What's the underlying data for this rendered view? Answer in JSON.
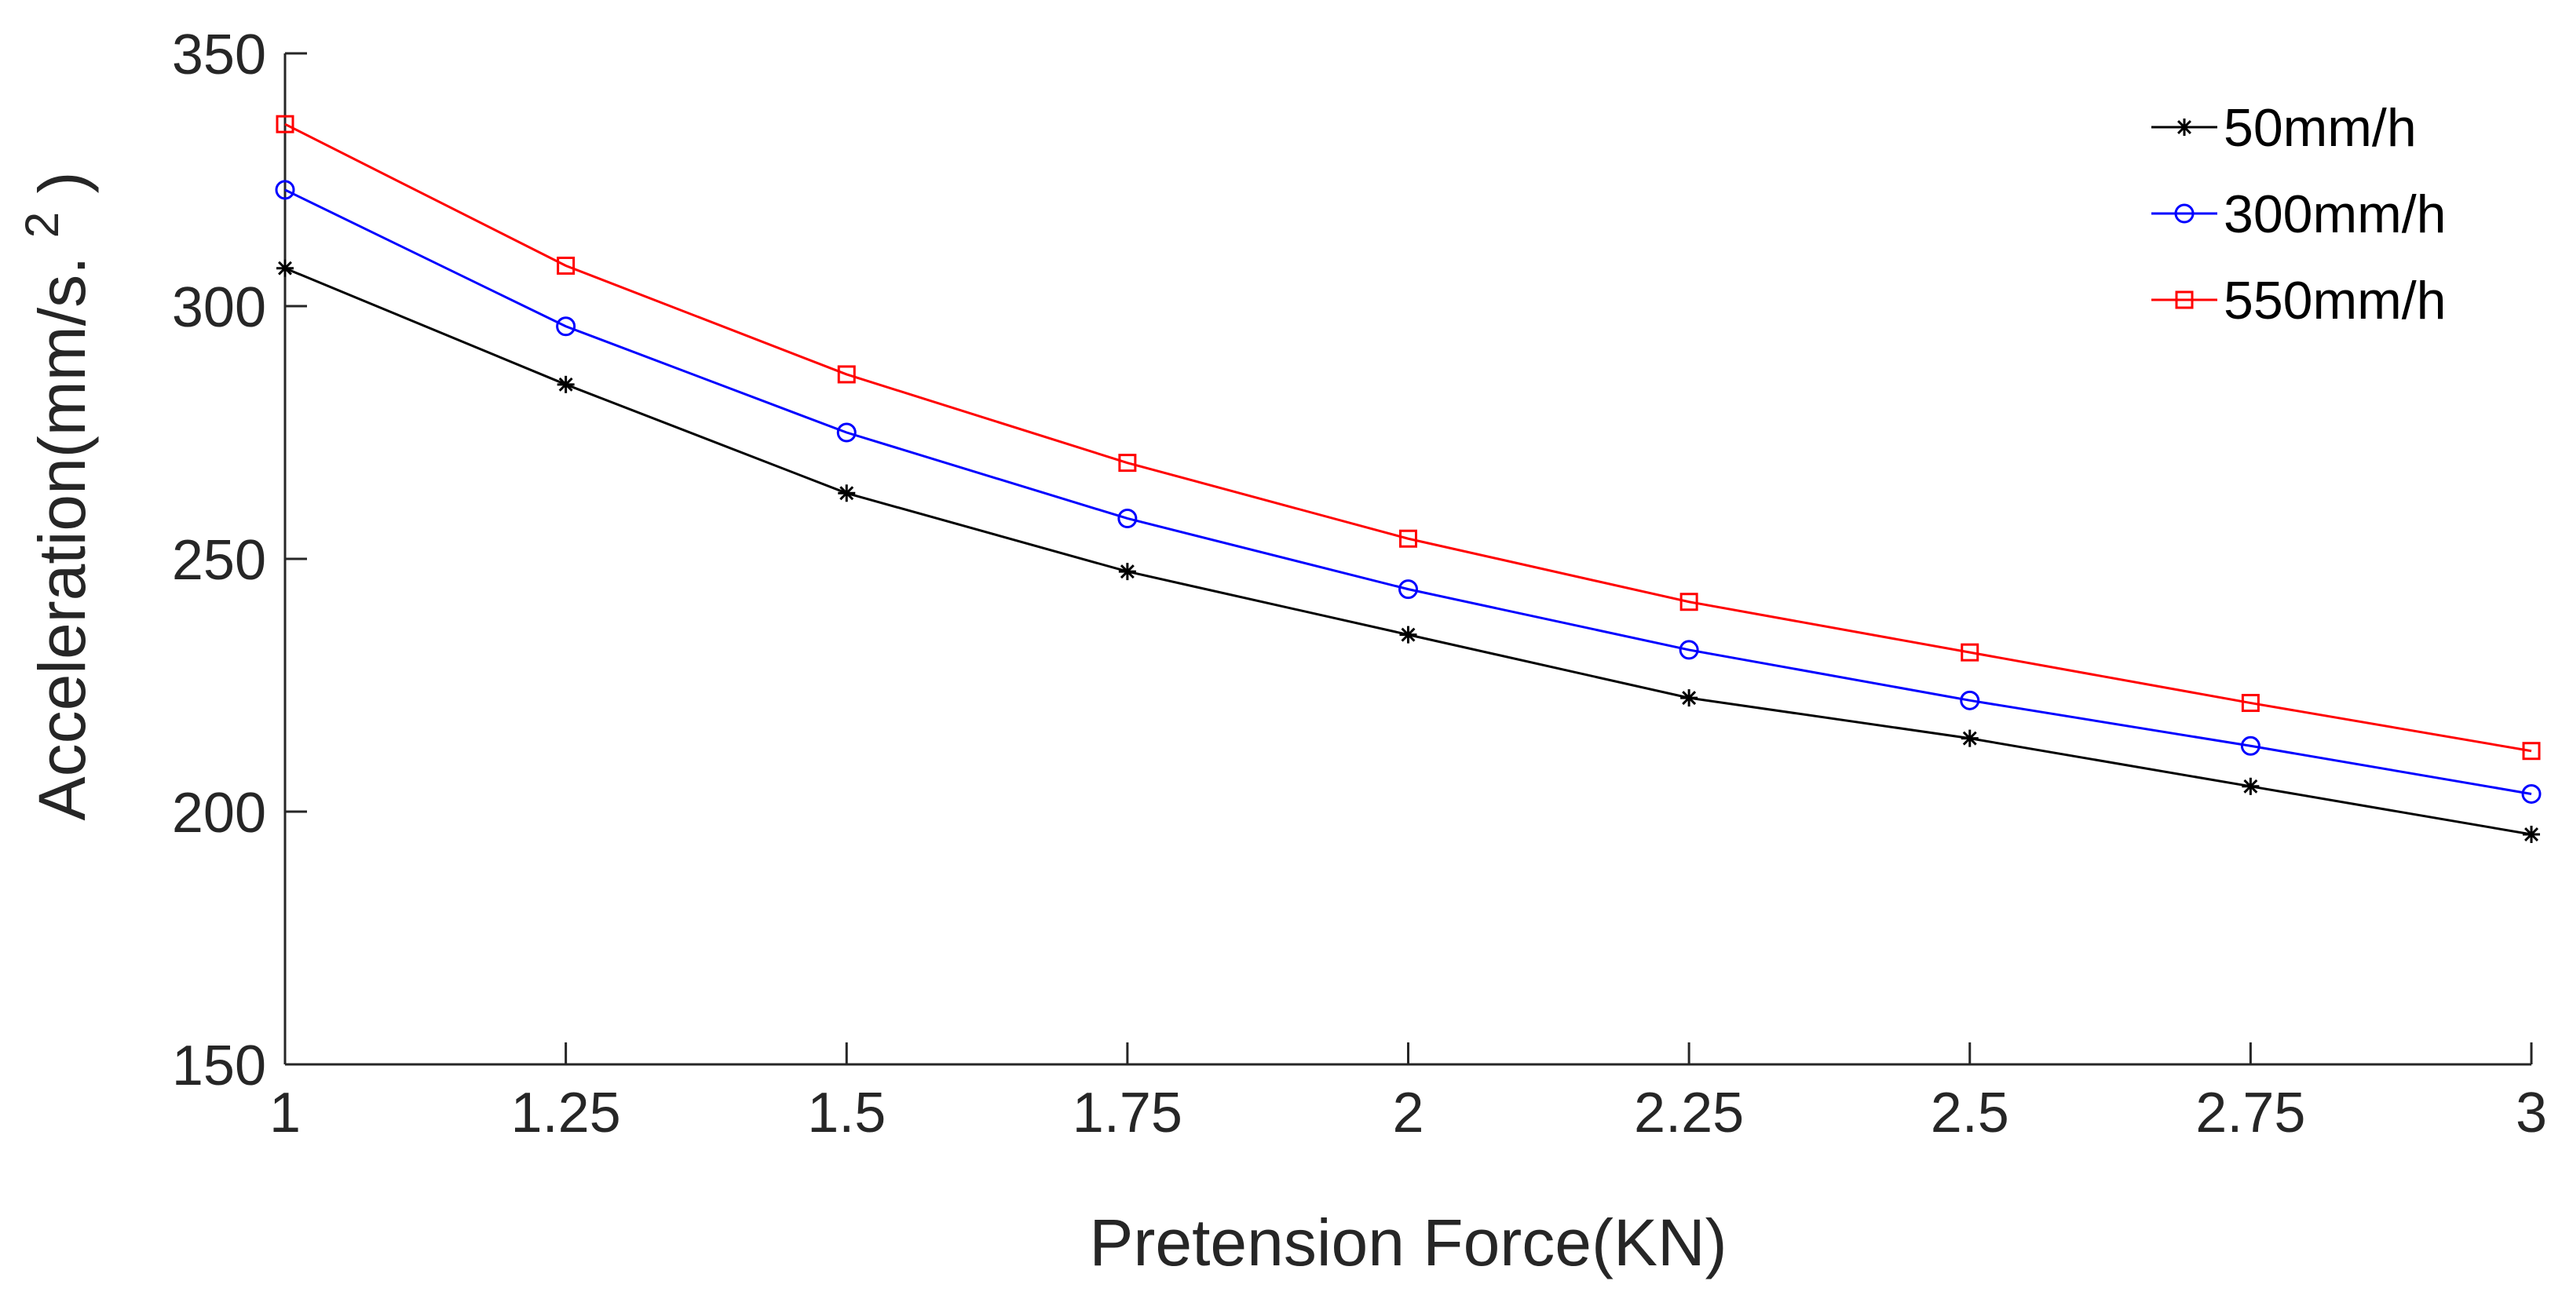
{
  "chart_data": {
    "type": "line",
    "title": "",
    "xlabel": "Pretension Force(KN)",
    "ylabel_main": "Acceleration(mm/s.",
    "ylabel_sup": "2",
    "ylabel_close": ")",
    "x": [
      1,
      1.25,
      1.5,
      1.75,
      2,
      2.25,
      2.5,
      2.75,
      3
    ],
    "xlim": [
      1,
      3
    ],
    "ylim": [
      150,
      350
    ],
    "xticks": [
      1,
      1.25,
      1.5,
      1.75,
      2,
      2.25,
      2.5,
      2.75,
      3
    ],
    "xtick_labels": [
      "1",
      "1.25",
      "1.5",
      "1.75",
      "2",
      "2.25",
      "2.5",
      "2.75",
      "3"
    ],
    "yticks": [
      150,
      200,
      250,
      300,
      350
    ],
    "ytick_labels": [
      "150",
      "200",
      "250",
      "300",
      "350"
    ],
    "grid": false,
    "legend_position": "top-right",
    "series": [
      {
        "name": "50mm/h",
        "color": "#000000",
        "marker": "asterisk",
        "values": [
          307.5,
          284.5,
          263,
          247.5,
          235,
          222.5,
          214.5,
          205,
          195.5
        ]
      },
      {
        "name": "300mm/h",
        "color": "#0000ff",
        "marker": "circle",
        "values": [
          323,
          296,
          275,
          258,
          244,
          232,
          222,
          213,
          203.5
        ]
      },
      {
        "name": "550mm/h",
        "color": "#ff0000",
        "marker": "square",
        "values": [
          336,
          308,
          286.5,
          269,
          254,
          241.5,
          231.5,
          221.5,
          212
        ]
      }
    ]
  }
}
